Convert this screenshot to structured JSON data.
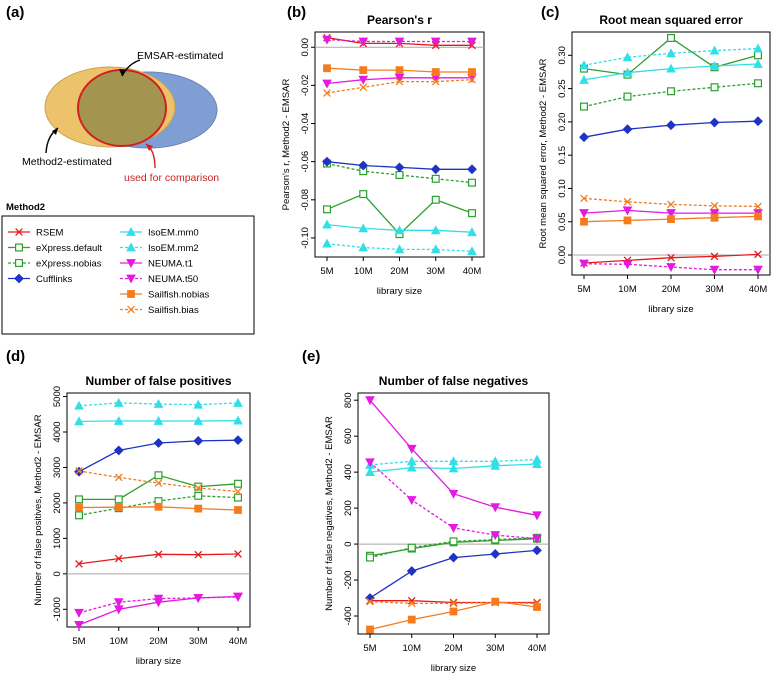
{
  "panel_labels": [
    "(a)",
    "(b)",
    "(c)",
    "(d)",
    "(e)"
  ],
  "venn": {
    "emsar_label": "EMSAR-estimated",
    "method2_label": "Method2-estimated",
    "comparison_label": "used for comparison",
    "colors": {
      "emsar": "#7f9fd4",
      "method2": "#ecc36a",
      "overlap": "#a39450",
      "comparison": "#d21f1f"
    }
  },
  "legend": {
    "title": "Method2",
    "items": [
      {
        "key": "rsem",
        "label": "RSEM",
        "color": "#e31a1c",
        "marker": "x",
        "dash": false
      },
      {
        "key": "express_default",
        "label": "eXpress.default",
        "color": "#2ca02c",
        "marker": "square",
        "dash": false
      },
      {
        "key": "express_nobias",
        "label": "eXpress.nobias",
        "color": "#2ca02c",
        "marker": "square",
        "dash": true
      },
      {
        "key": "cufflinks",
        "label": "Cufflinks",
        "color": "#1f33c4",
        "marker": "diamond",
        "dash": false
      },
      {
        "key": "isoem_mm0",
        "label": "IsoEM.mm0",
        "color": "#33dfe6",
        "marker": "triangle",
        "dash": false
      },
      {
        "key": "isoem_mm2",
        "label": "IsoEM.mm2",
        "color": "#33dfe6",
        "marker": "triangle",
        "dash": true
      },
      {
        "key": "neuma_t1",
        "label": "NEUMA.t1",
        "color": "#e41ae3",
        "marker": "triangle-down",
        "dash": false
      },
      {
        "key": "neuma_t50",
        "label": "NEUMA.t50",
        "color": "#e41ae3",
        "marker": "triangle-down",
        "dash": true
      },
      {
        "key": "sailfish_nobias",
        "label": "Sailfish.nobias",
        "color": "#f47c1f",
        "marker": "square-filled",
        "dash": false
      },
      {
        "key": "sailfish_bias",
        "label": "Sailfish.bias",
        "color": "#f47c1f",
        "marker": "x",
        "dash": true
      }
    ]
  },
  "chart_data": [
    {
      "panel": "(b)",
      "type": "line",
      "title": "Pearson's r",
      "xlabel": "library size",
      "ylabel": "Pearson's r, Method2 - EMSAR",
      "categories": [
        "5M",
        "10M",
        "20M",
        "30M",
        "40M"
      ],
      "ylim": [
        -0.11,
        0.008
      ],
      "yticks": [
        0.0,
        -0.02,
        -0.04,
        -0.06,
        -0.08,
        -0.1
      ],
      "ytick_labels": [
        "0.00",
        "-0.02",
        "-0.04",
        "-0.06",
        "-0.08",
        "-0.10"
      ],
      "reference_line": 0,
      "series": [
        {
          "key": "rsem",
          "values": [
            0.005,
            0.002,
            0.002,
            0.001,
            0.001
          ]
        },
        {
          "key": "express_default",
          "values": [
            -0.085,
            -0.077,
            -0.098,
            -0.08,
            -0.087
          ]
        },
        {
          "key": "express_nobias",
          "values": [
            -0.061,
            -0.065,
            -0.067,
            -0.069,
            -0.071
          ]
        },
        {
          "key": "cufflinks",
          "values": [
            -0.06,
            -0.062,
            -0.063,
            -0.064,
            -0.064
          ]
        },
        {
          "key": "isoem_mm0",
          "values": [
            -0.093,
            -0.095,
            -0.096,
            -0.096,
            -0.097
          ]
        },
        {
          "key": "isoem_mm2",
          "values": [
            -0.103,
            -0.105,
            -0.106,
            -0.106,
            -0.107
          ]
        },
        {
          "key": "neuma_t1",
          "values": [
            -0.019,
            -0.017,
            -0.016,
            -0.016,
            -0.016
          ]
        },
        {
          "key": "neuma_t50",
          "values": [
            0.004,
            0.003,
            0.003,
            0.003,
            0.003
          ]
        },
        {
          "key": "sailfish_nobias",
          "values": [
            -0.011,
            -0.012,
            -0.012,
            -0.013,
            -0.013
          ]
        },
        {
          "key": "sailfish_bias",
          "values": [
            -0.024,
            -0.021,
            -0.018,
            -0.018,
            -0.017
          ]
        }
      ]
    },
    {
      "panel": "(c)",
      "type": "line",
      "title": "Root mean squared error",
      "xlabel": "library size",
      "ylabel": "Root mean squared error, Method2 - EMSAR",
      "categories": [
        "5M",
        "10M",
        "20M",
        "30M",
        "40M"
      ],
      "ylim": [
        -0.03,
        0.335
      ],
      "yticks": [
        0.0,
        0.05,
        0.1,
        0.15,
        0.2,
        0.25,
        0.3
      ],
      "ytick_labels": [
        "0.00",
        "0.05",
        "0.10",
        "0.15",
        "0.20",
        "0.25",
        "0.30"
      ],
      "reference_line": 0,
      "series": [
        {
          "key": "rsem",
          "values": [
            -0.012,
            -0.008,
            -0.004,
            -0.002,
            0.001
          ]
        },
        {
          "key": "express_default",
          "values": [
            0.28,
            0.271,
            0.326,
            0.282,
            0.3
          ]
        },
        {
          "key": "express_nobias",
          "values": [
            0.223,
            0.238,
            0.246,
            0.252,
            0.258
          ]
        },
        {
          "key": "cufflinks",
          "values": [
            0.177,
            0.189,
            0.195,
            0.199,
            0.201
          ]
        },
        {
          "key": "isoem_mm0",
          "values": [
            0.263,
            0.274,
            0.28,
            0.284,
            0.287
          ]
        },
        {
          "key": "isoem_mm2",
          "values": [
            0.285,
            0.297,
            0.303,
            0.307,
            0.31
          ]
        },
        {
          "key": "neuma_t1",
          "values": [
            0.063,
            0.067,
            0.063,
            0.063,
            0.063
          ]
        },
        {
          "key": "neuma_t50",
          "values": [
            -0.013,
            -0.014,
            -0.018,
            -0.022,
            -0.022
          ]
        },
        {
          "key": "sailfish_nobias",
          "values": [
            0.05,
            0.052,
            0.054,
            0.056,
            0.058
          ]
        },
        {
          "key": "sailfish_bias",
          "values": [
            0.085,
            0.08,
            0.076,
            0.074,
            0.073
          ]
        }
      ]
    },
    {
      "panel": "(d)",
      "type": "line",
      "title": "Number of false positives",
      "xlabel": "library size",
      "ylabel": "Number of false positives, Method2 - EMSAR",
      "categories": [
        "5M",
        "10M",
        "20M",
        "30M",
        "40M"
      ],
      "ylim": [
        -1500,
        5100
      ],
      "yticks": [
        -1000,
        0,
        1000,
        2000,
        3000,
        4000,
        5000
      ],
      "ytick_labels": [
        "-1000",
        "0",
        "1000",
        "2000",
        "3000",
        "4000",
        "5000"
      ],
      "reference_line": 0,
      "series": [
        {
          "key": "rsem",
          "values": [
            280,
            430,
            550,
            540,
            560
          ]
        },
        {
          "key": "express_default",
          "values": [
            2100,
            2100,
            2780,
            2460,
            2540
          ]
        },
        {
          "key": "express_nobias",
          "values": [
            1650,
            1850,
            2050,
            2200,
            2150
          ]
        },
        {
          "key": "cufflinks",
          "values": [
            2880,
            3480,
            3690,
            3750,
            3770
          ]
        },
        {
          "key": "isoem_mm0",
          "values": [
            4300,
            4310,
            4310,
            4310,
            4320
          ]
        },
        {
          "key": "isoem_mm2",
          "values": [
            4740,
            4820,
            4790,
            4770,
            4820
          ]
        },
        {
          "key": "neuma_t1",
          "values": [
            -1440,
            -1000,
            -800,
            -680,
            -640
          ]
        },
        {
          "key": "neuma_t50",
          "values": [
            -1100,
            -800,
            -700,
            -680,
            -650
          ]
        },
        {
          "key": "sailfish_nobias",
          "values": [
            1870,
            1880,
            1890,
            1840,
            1800
          ]
        },
        {
          "key": "sailfish_bias",
          "values": [
            2900,
            2720,
            2560,
            2420,
            2320
          ]
        }
      ]
    },
    {
      "panel": "(e)",
      "type": "line",
      "title": "Number of false negatives",
      "xlabel": "library size",
      "ylabel": "Number of false negatives, Method2 - EMSAR",
      "categories": [
        "5M",
        "10M",
        "20M",
        "30M",
        "40M"
      ],
      "ylim": [
        -500,
        840
      ],
      "yticks": [
        -400,
        -200,
        0,
        200,
        400,
        600,
        800
      ],
      "ytick_labels": [
        "-400",
        "-200",
        "0",
        "200",
        "400",
        "600",
        "800"
      ],
      "reference_line": 0,
      "series": [
        {
          "key": "rsem",
          "values": [
            -315,
            -315,
            -325,
            -325,
            -325
          ]
        },
        {
          "key": "express_default",
          "values": [
            -65,
            -25,
            10,
            20,
            30
          ]
        },
        {
          "key": "express_nobias",
          "values": [
            -75,
            -20,
            15,
            25,
            35
          ]
        },
        {
          "key": "cufflinks",
          "values": [
            -300,
            -150,
            -75,
            -55,
            -35
          ]
        },
        {
          "key": "isoem_mm0",
          "values": [
            400,
            425,
            420,
            435,
            445
          ]
        },
        {
          "key": "isoem_mm2",
          "values": [
            440,
            460,
            460,
            460,
            470
          ]
        },
        {
          "key": "neuma_t1",
          "values": [
            800,
            530,
            280,
            205,
            160
          ]
        },
        {
          "key": "neuma_t50",
          "values": [
            455,
            245,
            90,
            50,
            30
          ]
        },
        {
          "key": "sailfish_nobias",
          "values": [
            -475,
            -420,
            -375,
            -320,
            -350
          ]
        },
        {
          "key": "sailfish_bias",
          "values": [
            -320,
            -330,
            -330,
            -325,
            -330
          ]
        }
      ]
    }
  ]
}
